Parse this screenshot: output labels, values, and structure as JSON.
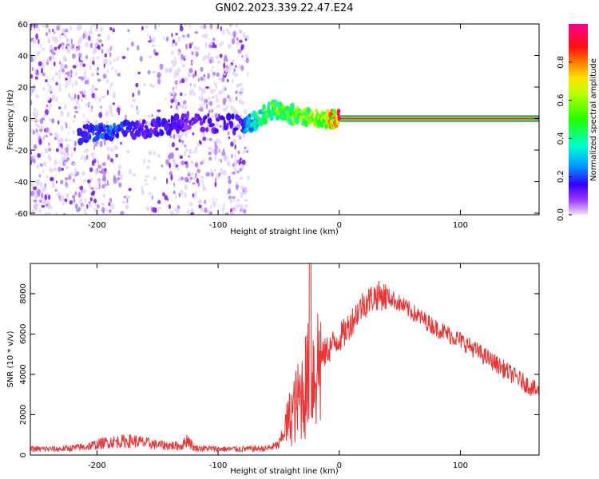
{
  "figure_title": "GN02.2023.339.22.47.E24",
  "chart_data": [
    {
      "type": "heatmap",
      "title": "GN02.2023.339.22.47.E24",
      "xlabel": "Height of straight line (km)",
      "ylabel": "Frequency (Hz)",
      "xlim": [
        -255,
        165
      ],
      "ylim": [
        -61,
        60
      ],
      "x_ticks": [
        -200,
        -100,
        0,
        100
      ],
      "y_ticks": [
        -60,
        -40,
        -20,
        0,
        20,
        40,
        60
      ],
      "colorbar": {
        "label": "Normalized spectral amplitude",
        "range": [
          0.0,
          1.0
        ],
        "ticks": [
          0.0,
          0.2,
          0.4,
          0.6,
          0.8
        ],
        "tick_labels": [
          "0.0",
          "0.2",
          "0.4",
          "0.6",
          "0.8"
        ]
      },
      "noise_region": {
        "x_range": [
          -255,
          -75
        ],
        "frequency_range": [
          -61,
          60
        ]
      },
      "signal_track": [
        {
          "x": -215,
          "frequency": -10,
          "amplitude": 0.15
        },
        {
          "x": -190,
          "frequency": -8,
          "amplitude": 0.2
        },
        {
          "x": -165,
          "frequency": -7,
          "amplitude": 0.15
        },
        {
          "x": -140,
          "frequency": -4,
          "amplitude": 0.15
        },
        {
          "x": -125,
          "frequency": -2,
          "amplitude": 0.1
        },
        {
          "x": -80,
          "frequency": -4,
          "amplitude": 0.15
        },
        {
          "x": -70,
          "frequency": -2,
          "amplitude": 0.35
        },
        {
          "x": -55,
          "frequency": 6,
          "amplitude": 0.45
        },
        {
          "x": -40,
          "frequency": 3,
          "amplitude": 0.5
        },
        {
          "x": -25,
          "frequency": 0,
          "amplitude": 0.55
        },
        {
          "x": -10,
          "frequency": 0,
          "amplitude": 0.6
        },
        {
          "x": 0,
          "frequency": 0,
          "amplitude": 0.9
        },
        {
          "x": 165,
          "frequency": 0,
          "amplitude": 1.0
        }
      ],
      "grid": false
    },
    {
      "type": "line",
      "xlabel": "Height of straight line (km)",
      "ylabel": "SNR (10 * v/v)",
      "xlim": [
        -255,
        165
      ],
      "ylim": [
        0,
        9500
      ],
      "x_ticks": [
        -200,
        -100,
        0,
        100
      ],
      "y_ticks": [
        0,
        2000,
        4000,
        6000,
        8000
      ],
      "grid": false,
      "series": [
        {
          "color": "#ee3333",
          "x": [
            -255,
            -230,
            -210,
            -190,
            -170,
            -150,
            -130,
            -125,
            -120,
            -100,
            -80,
            -60,
            -50,
            -45,
            -40,
            -35,
            -30,
            -25,
            -20,
            -15,
            -10,
            -5,
            0,
            5,
            10,
            15,
            20,
            25,
            30,
            35,
            40,
            45,
            50,
            60,
            70,
            80,
            90,
            100,
            110,
            120,
            130,
            140,
            150,
            160,
            165
          ],
          "values": [
            300,
            300,
            400,
            650,
            700,
            500,
            450,
            800,
            350,
            300,
            300,
            320,
            500,
            1200,
            2000,
            2500,
            3200,
            3800,
            4300,
            4800,
            5200,
            5500,
            5800,
            6100,
            6600,
            7100,
            7500,
            7700,
            7900,
            7900,
            7850,
            7700,
            7500,
            7100,
            6700,
            6300,
            6000,
            5700,
            5300,
            4900,
            4500,
            4100,
            3700,
            3300,
            3100
          ]
        }
      ]
    }
  ]
}
